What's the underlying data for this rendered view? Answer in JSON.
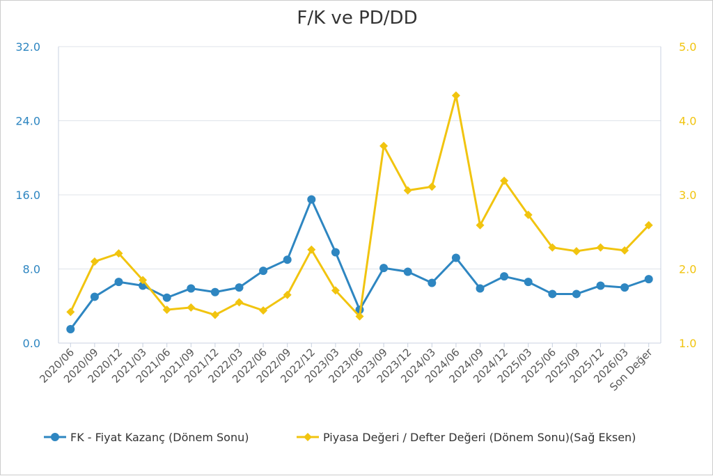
{
  "chart_data": {
    "type": "line",
    "title": "F/K ve PD/DD",
    "categories": [
      "2020/06",
      "2020/09",
      "2020/12",
      "2021/03",
      "2021/06",
      "2021/09",
      "2021/12",
      "2022/03",
      "2022/06",
      "2022/09",
      "2022/12",
      "2023/03",
      "2023/06",
      "2023/09",
      "2023/12",
      "2024/03",
      "2024/06",
      "2024/09",
      "2024/12",
      "2025/03",
      "2025/06",
      "2025/09",
      "2025/12",
      "2026/03",
      "Son Değer"
    ],
    "left_axis": {
      "ylim": [
        0,
        32
      ],
      "ticks": [
        "0.0",
        "8.0",
        "16.0",
        "24.0",
        "32.0"
      ],
      "color": "#2e86c1"
    },
    "right_axis": {
      "ylim": [
        1,
        5
      ],
      "ticks": [
        "1.0",
        "2.0",
        "3.0",
        "4.0",
        "5.0"
      ],
      "color": "#f1c40f"
    },
    "grid": true,
    "legend_position": "bottom",
    "series": [
      {
        "name": "FK - Fiyat Kazanç (Dönem Sonu)",
        "axis": "left",
        "color": "#2e86c1",
        "marker": "circle",
        "values": [
          1.5,
          5.0,
          6.6,
          6.2,
          4.9,
          5.9,
          5.5,
          6.0,
          7.8,
          9.0,
          15.5,
          9.8,
          3.6,
          8.1,
          7.7,
          6.5,
          9.2,
          5.9,
          7.2,
          6.6,
          5.3,
          5.3,
          6.2,
          6.0,
          6.9
        ]
      },
      {
        "name": "Piyasa Değeri / Defter Değeri (Dönem Sonu)(Sağ Eksen)",
        "axis": "right",
        "color": "#f1c40f",
        "marker": "diamond",
        "values": [
          1.42,
          2.1,
          2.21,
          1.85,
          1.45,
          1.48,
          1.38,
          1.55,
          1.44,
          1.65,
          2.26,
          1.71,
          1.36,
          3.66,
          3.06,
          3.11,
          4.34,
          2.59,
          3.19,
          2.73,
          2.29,
          2.24,
          2.29,
          2.25,
          2.59
        ]
      }
    ]
  }
}
